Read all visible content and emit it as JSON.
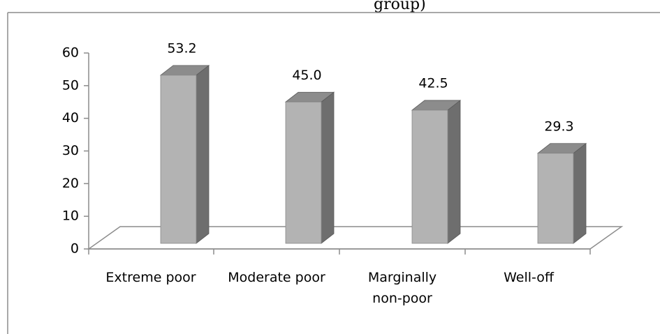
{
  "caption_fragment": "group)",
  "chart_data": {
    "type": "bar",
    "style": "3d-column",
    "categories": [
      [
        "Extreme poor"
      ],
      [
        "Moderate poor"
      ],
      [
        "Marginally",
        "non-poor"
      ],
      [
        "Well-off"
      ]
    ],
    "values": [
      53.2,
      45.0,
      42.5,
      29.3
    ],
    "data_labels": [
      "53.2",
      "45.0",
      "42.5",
      "29.3"
    ],
    "ylim": [
      0,
      60
    ],
    "yticks": [
      0,
      10,
      20,
      30,
      40,
      50,
      60
    ],
    "gridlines": false,
    "legend": "none",
    "colors": {
      "bar_front": "#b3b3b3",
      "bar_side": "#6e6e6e",
      "bar_top": "#8c8c8c",
      "floor_line": "#8c8c8c",
      "axis_line": "#8c8c8c",
      "frame": "#8c8c8c"
    }
  }
}
